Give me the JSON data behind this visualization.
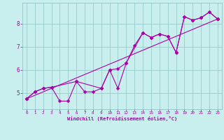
{
  "xlabel": "Windchill (Refroidissement éolien,°C)",
  "bg_color": "#c8eeee",
  "line_color": "#aa00aa",
  "grid_color": "#99cccc",
  "xlim": [
    -0.5,
    23.5
  ],
  "ylim": [
    4.3,
    8.9
  ],
  "xticks": [
    0,
    1,
    2,
    3,
    4,
    5,
    6,
    7,
    8,
    9,
    10,
    11,
    12,
    13,
    14,
    15,
    16,
    17,
    18,
    19,
    20,
    21,
    22,
    23
  ],
  "yticks": [
    5,
    6,
    7,
    8
  ],
  "series1_x": [
    0,
    1,
    2,
    3,
    4,
    5,
    6,
    7,
    8,
    9,
    10,
    11,
    12,
    13,
    14,
    15,
    16,
    17,
    18,
    19,
    20,
    21,
    22,
    23
  ],
  "series1_y": [
    4.75,
    5.05,
    5.2,
    5.25,
    4.65,
    4.65,
    5.5,
    5.05,
    5.05,
    5.2,
    6.0,
    5.2,
    6.3,
    7.05,
    7.6,
    7.4,
    7.55,
    7.45,
    6.75,
    8.3,
    8.15,
    8.25,
    8.5,
    8.2
  ],
  "series2_x": [
    0,
    1,
    2,
    3,
    6,
    9,
    10,
    11,
    12,
    14,
    15,
    16,
    17,
    18,
    19,
    20,
    21,
    22,
    23
  ],
  "series2_y": [
    4.75,
    5.05,
    5.2,
    5.25,
    5.5,
    5.2,
    6.0,
    6.05,
    6.3,
    7.6,
    7.4,
    7.55,
    7.45,
    6.75,
    8.3,
    8.15,
    8.25,
    8.5,
    8.2
  ],
  "series3_x": [
    0,
    23
  ],
  "series3_y": [
    4.75,
    8.2
  ],
  "marker": "D",
  "markersize": 2.5,
  "linewidth": 0.8
}
